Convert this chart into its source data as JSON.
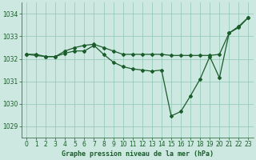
{
  "title": "Graphe pression niveau de la mer (hPa)",
  "background_color": "#cce8e0",
  "grid_color": "#99ccbb",
  "line_color": "#1a5c2a",
  "xlim": [
    -0.5,
    23.5
  ],
  "ylim": [
    1028.5,
    1034.5
  ],
  "yticks": [
    1029,
    1030,
    1031,
    1032,
    1033,
    1034
  ],
  "xticks": [
    0,
    1,
    2,
    3,
    4,
    5,
    6,
    7,
    8,
    9,
    10,
    11,
    12,
    13,
    14,
    15,
    16,
    17,
    18,
    19,
    20,
    21,
    22,
    23
  ],
  "series1_x": [
    0,
    1,
    2,
    3,
    4,
    5,
    6,
    7,
    8,
    9,
    10,
    11,
    12,
    13,
    14,
    15,
    16,
    17,
    18,
    19,
    20,
    21,
    22,
    23
  ],
  "series1_y": [
    1032.2,
    1032.2,
    1032.1,
    1032.1,
    1032.35,
    1032.5,
    1032.6,
    1032.65,
    1032.5,
    1032.35,
    1032.2,
    1032.2,
    1032.2,
    1032.2,
    1032.2,
    1032.15,
    1032.15,
    1032.15,
    1032.15,
    1032.15,
    1032.2,
    1033.15,
    1033.45,
    1033.85
  ],
  "series2_x": [
    0,
    1,
    2,
    3,
    4,
    5,
    6,
    7,
    8,
    9,
    10,
    11,
    12,
    13,
    14,
    15,
    16,
    17,
    18,
    19,
    20,
    21,
    22,
    23
  ],
  "series2_y": [
    1032.2,
    1032.15,
    1032.1,
    1032.1,
    1032.25,
    1032.35,
    1032.35,
    1032.6,
    1032.2,
    1031.85,
    1031.65,
    1031.55,
    1031.5,
    1031.45,
    1031.5,
    1029.45,
    1029.65,
    1030.35,
    1031.1,
    1032.1,
    1031.15,
    1033.15,
    1033.4,
    1033.85
  ],
  "tick_fontsize": 5.5,
  "label_fontsize": 6.0,
  "linewidth": 0.9,
  "markersize": 2.0
}
